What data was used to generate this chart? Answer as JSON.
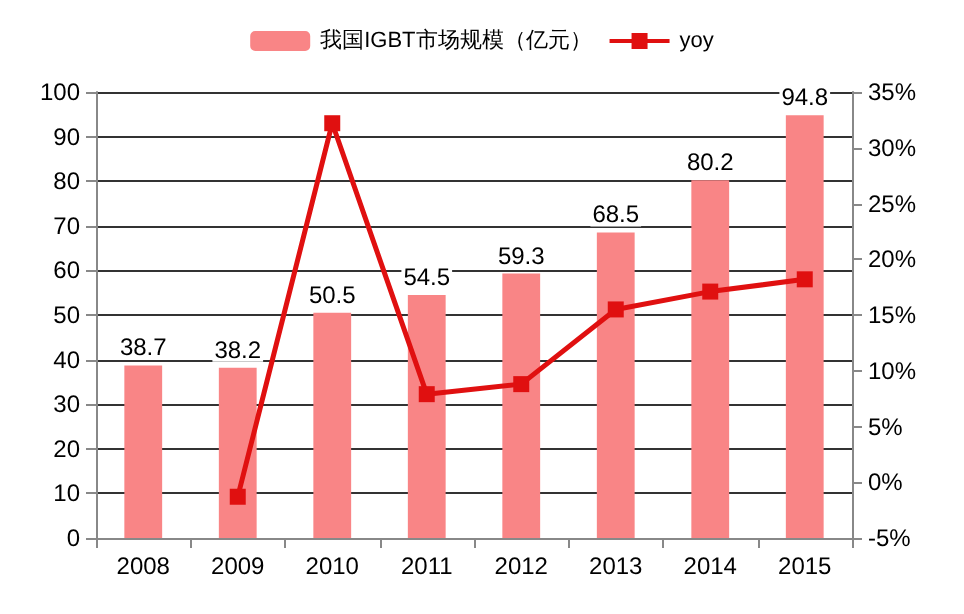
{
  "chart_data": {
    "type": "bar",
    "categories": [
      "2008",
      "2009",
      "2010",
      "2011",
      "2012",
      "2013",
      "2014",
      "2015"
    ],
    "series": [
      {
        "name": "我国IGBT市场规模（亿元）",
        "color": "#f98586",
        "values": [
          38.7,
          38.2,
          50.5,
          54.5,
          59.3,
          68.5,
          80.2,
          94.8
        ],
        "value_labels": [
          "38.7",
          "38.2",
          "50.5",
          "54.5",
          "59.3",
          "68.5",
          "80.2",
          "94.8"
        ]
      },
      {
        "name": "yoy",
        "type": "line",
        "axis": "y2",
        "color": "#e01010",
        "marker": "square",
        "values": [
          null,
          -1.3,
          32.2,
          7.9,
          8.8,
          15.5,
          17.1,
          18.2
        ]
      }
    ],
    "ylim": [
      0,
      100
    ],
    "yticks": [
      0,
      10,
      20,
      30,
      40,
      50,
      60,
      70,
      80,
      90,
      100
    ],
    "y2lim": [
      -5,
      35
    ],
    "y2ticks": [
      {
        "value": -5,
        "label": "-5%"
      },
      {
        "value": 0,
        "label": "0%"
      },
      {
        "value": 5,
        "label": "5%"
      },
      {
        "value": 10,
        "label": "10%"
      },
      {
        "value": 15,
        "label": "15%"
      },
      {
        "value": 20,
        "label": "20%"
      },
      {
        "value": 25,
        "label": "25%"
      },
      {
        "value": 30,
        "label": "30%"
      },
      {
        "value": 35,
        "label": "35%"
      }
    ],
    "grid": "y",
    "legend": "top"
  }
}
